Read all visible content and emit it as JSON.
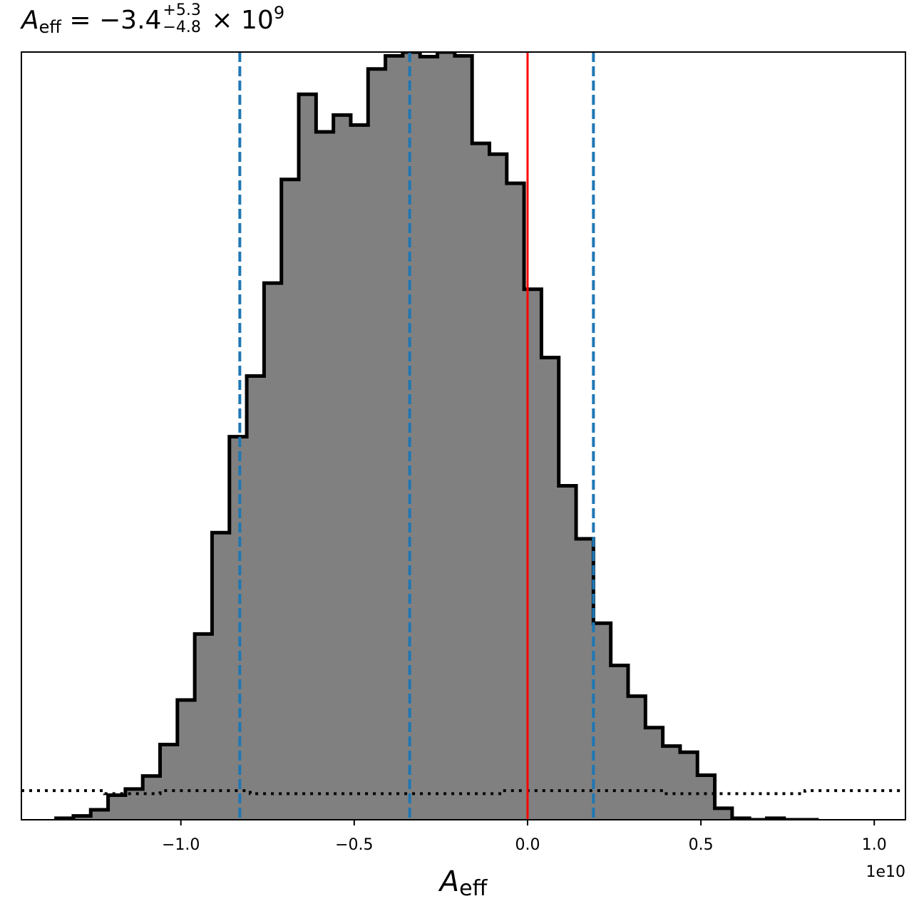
{
  "title": {
    "symbol": "A",
    "subscript": "eff",
    "value": " = −3.4",
    "plus": "+5.3",
    "minus": "−4.8",
    "suffix": "× 10",
    "exponent": "9"
  },
  "chart_data": {
    "type": "bar",
    "subtype": "step-histogram",
    "xlabel_symbol": "A",
    "xlabel_subscript": "eff",
    "ylabel": "",
    "offset_text": "1e10",
    "xlim": [
      -1.46,
      1.09
    ],
    "ylim": [
      0,
      1.0
    ],
    "x_scale_factor": 10000000000.0,
    "xticks": [
      -1.0,
      -0.5,
      0.0,
      0.5,
      1.0
    ],
    "xtick_labels": [
      "−1.0",
      "−0.5",
      "0.0",
      "0.5",
      "1.0"
    ],
    "bin_edges": [
      -1.36,
      -1.31,
      -1.26,
      -1.21,
      -1.16,
      -1.11,
      -1.06,
      -1.01,
      -0.96,
      -0.91,
      -0.86,
      -0.81,
      -0.76,
      -0.71,
      -0.66,
      -0.61,
      -0.56,
      -0.51,
      -0.46,
      -0.41,
      -0.36,
      -0.31,
      -0.26,
      -0.21,
      -0.16,
      -0.11,
      -0.06,
      -0.01,
      0.04,
      0.09,
      0.14,
      0.19,
      0.24,
      0.29,
      0.34,
      0.39,
      0.44,
      0.49,
      0.54,
      0.59,
      0.64,
      0.69,
      0.74,
      0.79,
      0.84
    ],
    "counts": [
      0.002,
      0.005,
      0.013,
      0.032,
      0.04,
      0.057,
      0.098,
      0.156,
      0.242,
      0.374,
      0.499,
      0.578,
      0.699,
      0.834,
      0.945,
      0.896,
      0.918,
      0.905,
      0.978,
      0.995,
      1.0,
      0.994,
      1.0,
      0.995,
      0.881,
      0.867,
      0.829,
      0.691,
      0.602,
      0.435,
      0.366,
      0.256,
      0.201,
      0.161,
      0.12,
      0.096,
      0.088,
      0.058,
      0.015,
      0.002,
      0.0,
      0.002,
      0.0,
      0.0
    ],
    "prior_level": 0.038,
    "prior_level_dips": [
      [
        -1.22,
        -1.06
      ],
      [
        -0.8,
        -0.08
      ],
      [
        0.4,
        0.8
      ]
    ],
    "prior_dip_value": 0.034,
    "vlines": [
      {
        "x": -0.83,
        "color": "#1f77b4",
        "style": "dashed",
        "name": "lower-credible-bound"
      },
      {
        "x": -0.34,
        "color": "#1f77b4",
        "style": "dashed",
        "name": "median"
      },
      {
        "x": 0.19,
        "color": "#1f77b4",
        "style": "dashed",
        "name": "upper-credible-bound"
      },
      {
        "x": 0.0,
        "color": "#ff0000",
        "style": "solid",
        "name": "injected-value"
      }
    ],
    "fill_color": "#808080",
    "edge_color": "#000000",
    "grid": false
  }
}
